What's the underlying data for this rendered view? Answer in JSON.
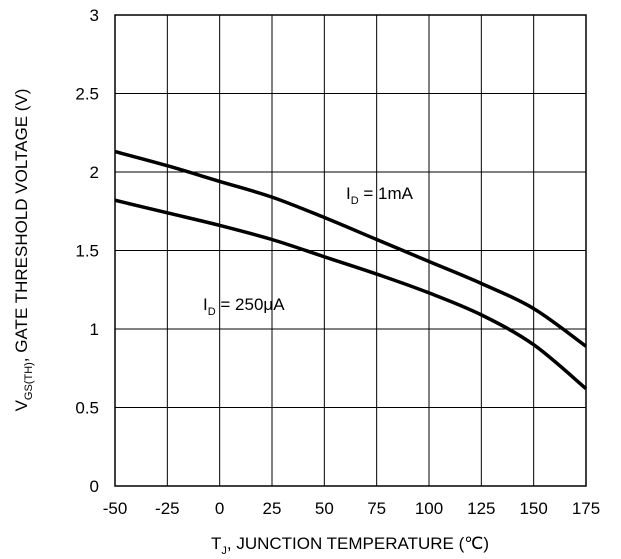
{
  "chart_data": {
    "type": "line",
    "xlabel": {
      "main": "T",
      "sub": "J",
      "rest": ", JUNCTION TEMPERATURE (℃)"
    },
    "ylabel": {
      "main": "V",
      "sub": "GS(TH)",
      "rest": ", GATE THRESHOLD VOLTAGE (V)"
    },
    "xlim": [
      -50,
      175
    ],
    "ylim": [
      0,
      3
    ],
    "x_ticks": [
      "-50",
      "-25",
      "0",
      "25",
      "50",
      "75",
      "100",
      "125",
      "150",
      "175"
    ],
    "y_ticks": [
      "0",
      "0.5",
      "1",
      "1.5",
      "2",
      "2.5",
      "3"
    ],
    "grid": true,
    "series": [
      {
        "name": "1mA",
        "x": [
          -50,
          -25,
          0,
          25,
          50,
          75,
          100,
          125,
          150,
          175
        ],
        "y": [
          2.13,
          2.04,
          1.94,
          1.84,
          1.71,
          1.57,
          1.43,
          1.29,
          1.13,
          0.89
        ]
      },
      {
        "name": "250μA",
        "x": [
          -50,
          -25,
          0,
          25,
          50,
          75,
          100,
          125,
          150,
          175
        ],
        "y": [
          1.82,
          1.74,
          1.66,
          1.57,
          1.46,
          1.35,
          1.23,
          1.09,
          0.9,
          0.62
        ]
      }
    ],
    "annotations": [
      {
        "main": "I",
        "sub": "D",
        "rest": " = 1mA"
      },
      {
        "main": "I",
        "sub": "D",
        "rest": " = 250μA"
      }
    ],
    "colors": {
      "line": "#000000",
      "grid": "#000000",
      "background": "#ffffff"
    }
  }
}
